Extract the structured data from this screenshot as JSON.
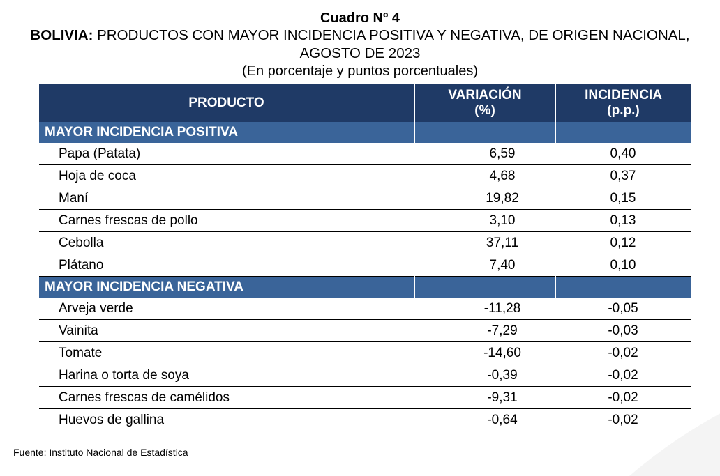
{
  "title": {
    "number": "Cuadro Nº 4",
    "line_bold": "BOLIVIA:",
    "line_text": " PRODUCTOS CON MAYOR INCIDENCIA POSITIVA Y NEGATIVA, DE ORIGEN NACIONAL, AGOSTO DE 2023",
    "subtitle": "(En porcentaje y puntos porcentuales)"
  },
  "table": {
    "headers": {
      "producto": "PRODUCTO",
      "variacion_1": "VARIACIÓN",
      "variacion_2": "(%)",
      "incidencia_1": "INCIDENCIA",
      "incidencia_2": "(p.p.)"
    },
    "positive": {
      "label": "MAYOR INCIDENCIA POSITIVA",
      "rows": [
        {
          "producto": "Papa (Patata)",
          "variacion": "6,59",
          "incidencia": "0,40"
        },
        {
          "producto": "Hoja de coca",
          "variacion": "4,68",
          "incidencia": "0,37"
        },
        {
          "producto": "Maní",
          "variacion": "19,82",
          "incidencia": "0,15"
        },
        {
          "producto": "Carnes frescas de pollo",
          "variacion": "3,10",
          "incidencia": "0,13"
        },
        {
          "producto": "Cebolla",
          "variacion": "37,11",
          "incidencia": "0,12"
        },
        {
          "producto": "Plátano",
          "variacion": "7,40",
          "incidencia": "0,10"
        }
      ]
    },
    "negative": {
      "label": "MAYOR INCIDENCIA NEGATIVA",
      "rows": [
        {
          "producto": "Arveja verde",
          "variacion": "-11,28",
          "incidencia": "-0,05"
        },
        {
          "producto": "Vainita",
          "variacion": "-7,29",
          "incidencia": "-0,03"
        },
        {
          "producto": "Tomate",
          "variacion": "-14,60",
          "incidencia": "-0,02"
        },
        {
          "producto": "Harina o torta de soya",
          "variacion": "-0,39",
          "incidencia": "-0,02"
        },
        {
          "producto": "Carnes frescas de camélidos",
          "variacion": "-9,31",
          "incidencia": "-0,02"
        },
        {
          "producto": "Huevos de gallina",
          "variacion": "-0,64",
          "incidencia": "-0,02"
        }
      ]
    }
  },
  "source": "Fuente: Instituto Nacional de Estadística",
  "colors": {
    "header_bg": "#1f3a66",
    "section_bg": "#3a6499"
  }
}
